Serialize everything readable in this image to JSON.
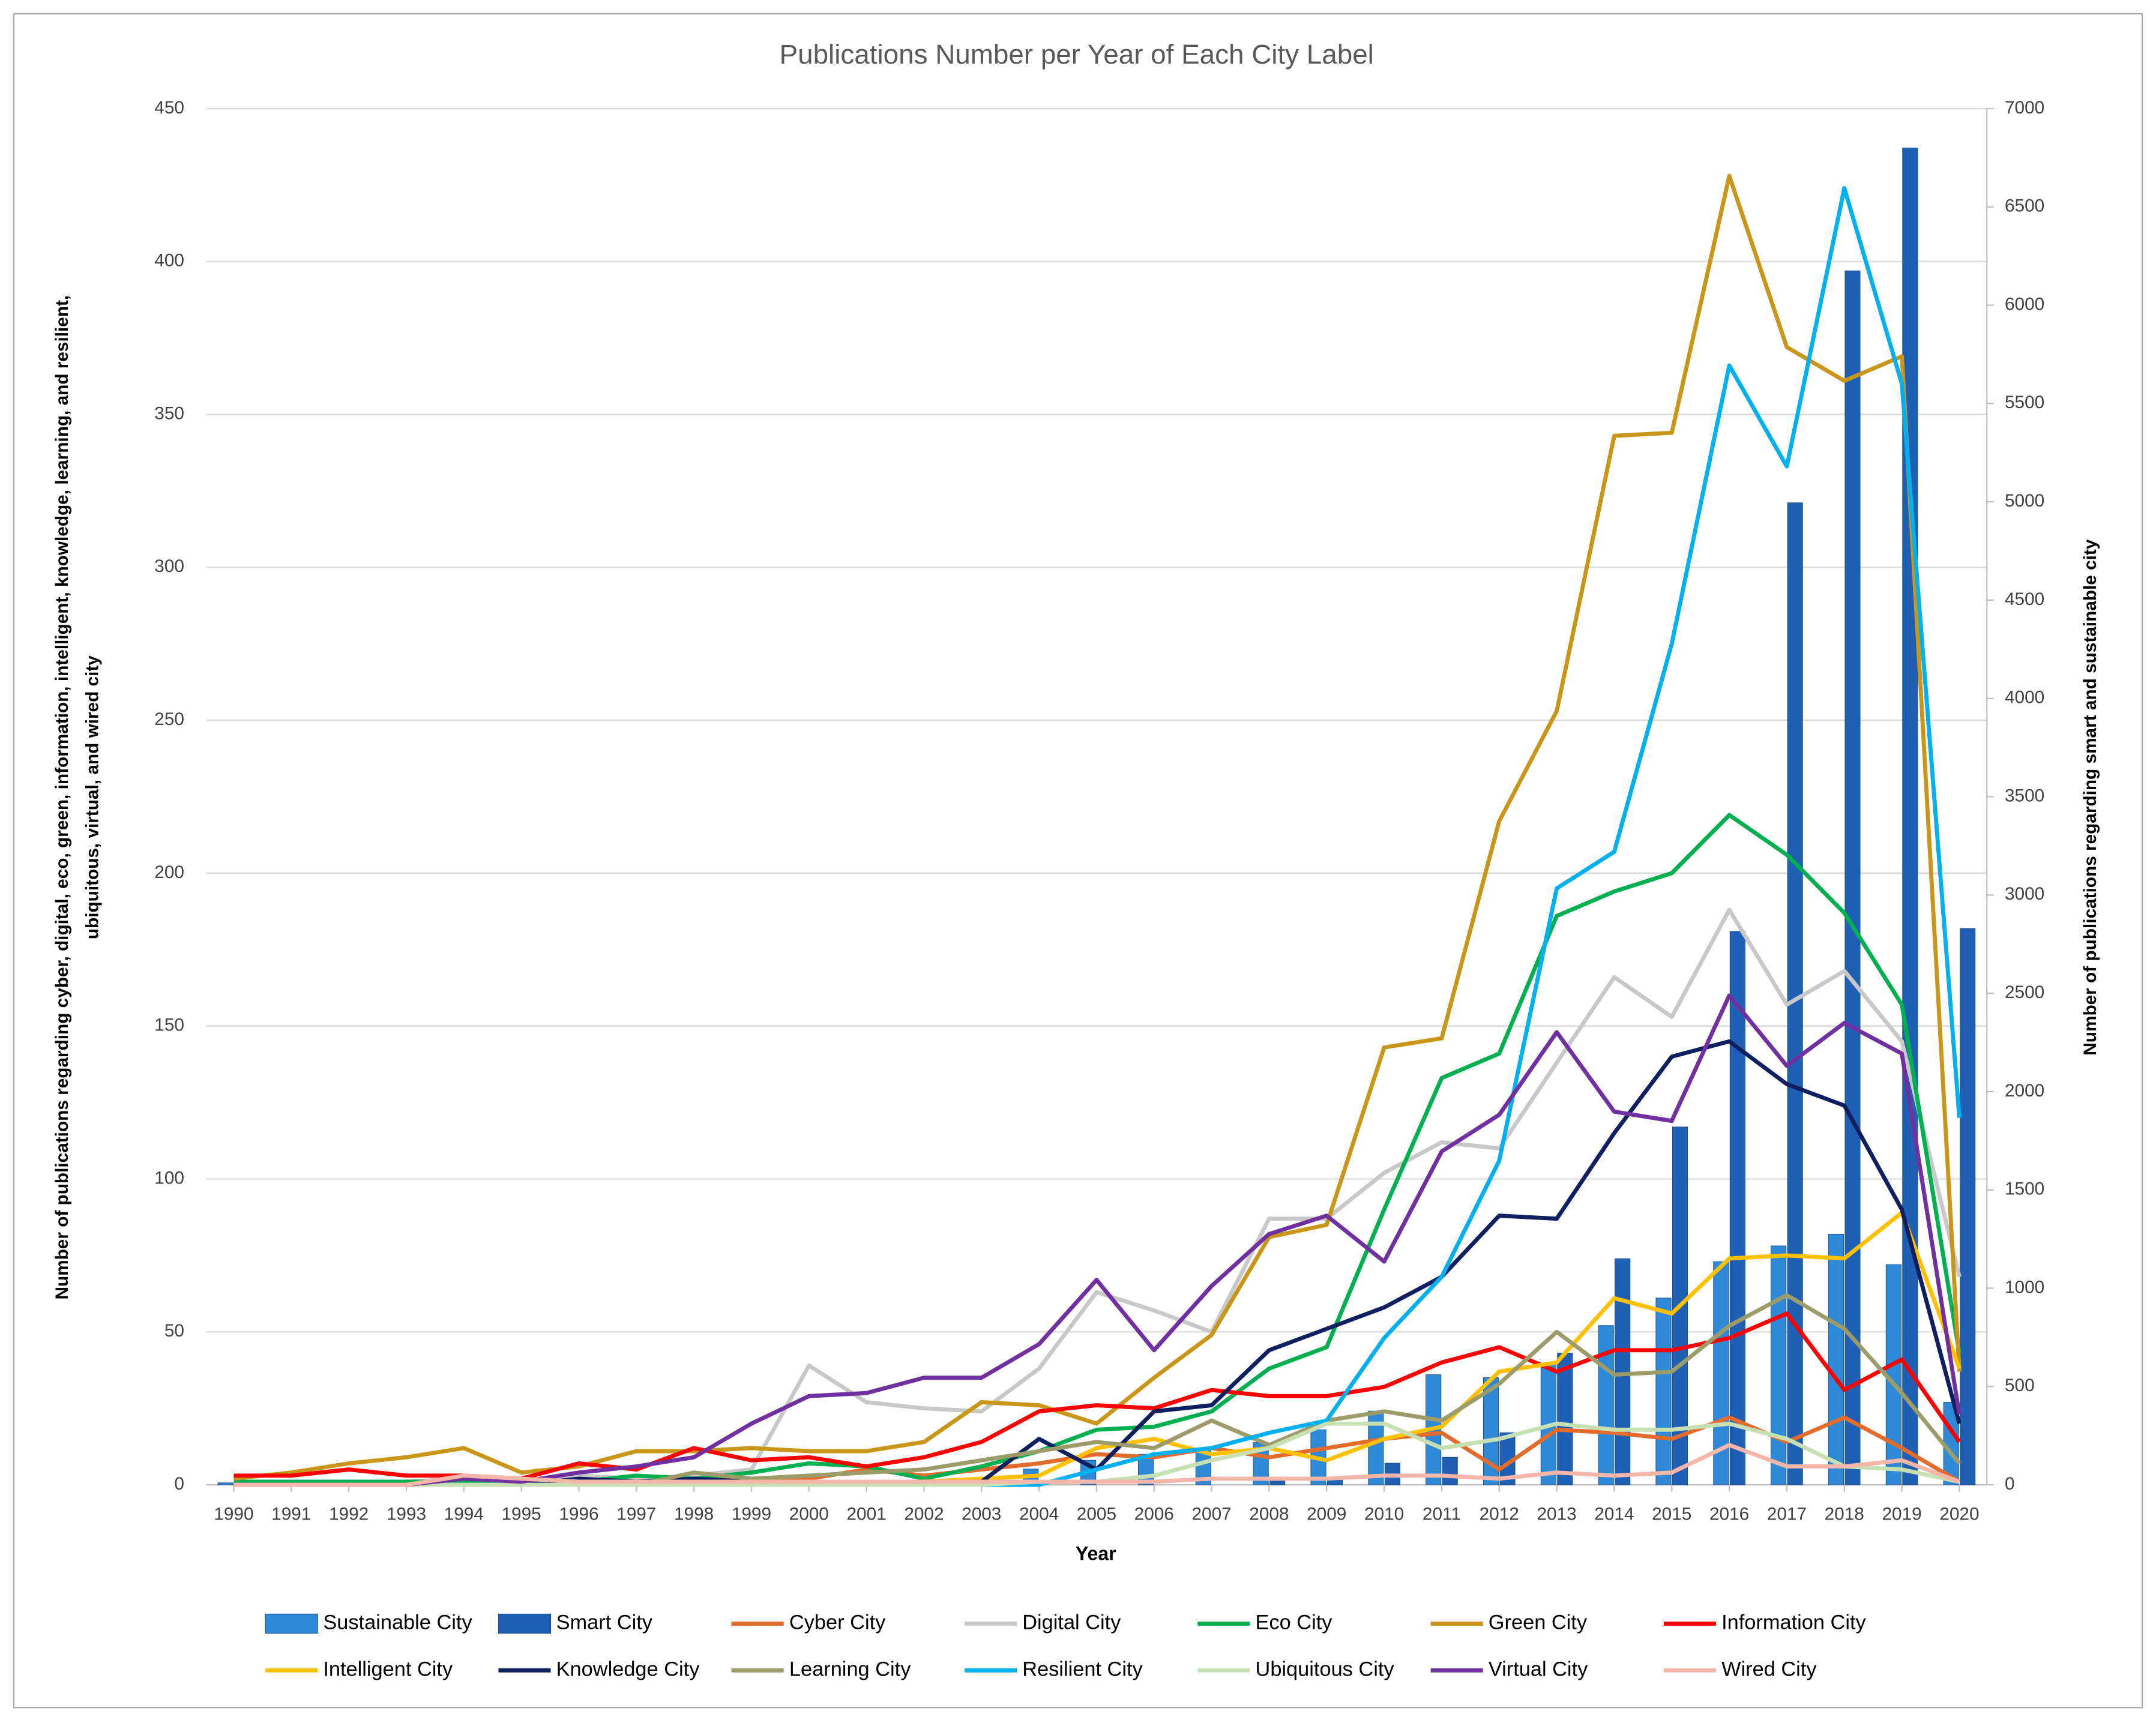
{
  "chart_data": {
    "type": "combo",
    "title": "Publications Number per Year of Each City Label",
    "x_label": "Year",
    "y_label": [
      "Number of publications  regarding cyber, digital, eco, green, information, intelligent, knowledge, learning, and resilient,",
      "ubiquitous,  virtual, and wired city"
    ],
    "y2_label": "Number of publications  regarding  smart and sustainable city",
    "x": [
      1990,
      1991,
      1992,
      1993,
      1994,
      1995,
      1996,
      1997,
      1998,
      1999,
      2000,
      2001,
      2002,
      2003,
      2004,
      2005,
      2006,
      2007,
      2008,
      2009,
      2010,
      2011,
      2012,
      2013,
      2014,
      2015,
      2016,
      2017,
      2018,
      2019,
      2020
    ],
    "ylim": [
      0,
      450
    ],
    "yticks": [
      0,
      50,
      100,
      150,
      200,
      250,
      300,
      350,
      400,
      450
    ],
    "y2lim": [
      0,
      7000
    ],
    "y2ticks": [
      0,
      500,
      1000,
      1500,
      2000,
      2500,
      3000,
      3500,
      4000,
      4500,
      5000,
      5500,
      6000,
      6500,
      7000
    ],
    "grid": true,
    "legend": "bottom",
    "series": [
      {
        "name": "Sustainable City",
        "type": "bar",
        "axis": "y2",
        "color": "#2e8ad6",
        "values": [
          10,
          10,
          10,
          10,
          10,
          10,
          10,
          10,
          10,
          10,
          10,
          10,
          15,
          30,
          80,
          125,
          155,
          185,
          215,
          280,
          375,
          560,
          545,
          620,
          810,
          950,
          1135,
          1215,
          1275,
          1120,
          420
        ]
      },
      {
        "name": "Smart City",
        "type": "bar",
        "axis": "y2",
        "color": "#1f5fb4",
        "values": [
          0,
          0,
          0,
          0,
          0,
          0,
          0,
          0,
          0,
          0,
          0,
          0,
          0,
          0,
          0,
          0,
          0,
          0,
          30,
          30,
          110,
          140,
          265,
          670,
          1150,
          1820,
          2815,
          4995,
          6175,
          6800,
          2830
        ]
      },
      {
        "name": "Cyber City",
        "type": "line",
        "color": "#e36c2c",
        "values": [
          1,
          1,
          1,
          1,
          2,
          1,
          2,
          2,
          2,
          2,
          2,
          5,
          3,
          5,
          7,
          10,
          9,
          12,
          9,
          12,
          15,
          17,
          5,
          18,
          17,
          15,
          22,
          14,
          22,
          12,
          1
        ]
      },
      {
        "name": "Digital City",
        "type": "line",
        "color": "#c8c8c8",
        "values": [
          0,
          0,
          1,
          1,
          2,
          1,
          3,
          2,
          3,
          5,
          39,
          27,
          25,
          24,
          38,
          63,
          57,
          50,
          87,
          87,
          102,
          112,
          110,
          138,
          166,
          153,
          188,
          157,
          168,
          145,
          68
        ]
      },
      {
        "name": "Eco City",
        "type": "line",
        "color": "#00b050",
        "values": [
          1,
          1,
          1,
          1,
          1,
          1,
          1,
          3,
          2,
          4,
          7,
          6,
          2,
          6,
          11,
          18,
          19,
          24,
          38,
          45,
          90,
          133,
          141,
          186,
          194,
          200,
          219,
          206,
          187,
          157,
          43
        ]
      },
      {
        "name": "Green City",
        "type": "line",
        "color": "#c9961a",
        "values": [
          2,
          4,
          7,
          9,
          12,
          4,
          6,
          11,
          11,
          12,
          11,
          11,
          14,
          27,
          26,
          20,
          35,
          49,
          81,
          85,
          143,
          146,
          217,
          253,
          343,
          344,
          428,
          372,
          361,
          369,
          37
        ]
      },
      {
        "name": "Information City",
        "type": "line",
        "color": "#ff0000",
        "values": [
          3,
          3,
          5,
          3,
          3,
          2,
          7,
          5,
          12,
          8,
          9,
          6,
          9,
          14,
          24,
          26,
          25,
          31,
          29,
          29,
          32,
          40,
          45,
          37,
          44,
          44,
          48,
          56,
          31,
          41,
          14
        ]
      },
      {
        "name": "Intelligent City",
        "type": "line",
        "color": "#ffc000",
        "values": [
          0,
          0,
          0,
          0,
          0,
          0,
          0,
          0,
          0,
          0,
          0,
          0,
          1,
          2,
          3,
          12,
          15,
          10,
          12,
          8,
          15,
          19,
          37,
          40,
          61,
          56,
          74,
          75,
          74,
          89,
          38
        ]
      },
      {
        "name": "Knowledge City",
        "type": "line",
        "color": "#0f1f5f",
        "values": [
          0,
          0,
          0,
          0,
          0,
          0,
          2,
          1,
          2,
          1,
          1,
          1,
          1,
          1,
          15,
          5,
          24,
          26,
          44,
          51,
          58,
          68,
          88,
          87,
          115,
          140,
          145,
          131,
          124,
          90,
          20
        ]
      },
      {
        "name": "Learning City",
        "type": "line",
        "color": "#9c9c6a",
        "values": [
          0,
          0,
          0,
          0,
          0,
          0,
          0,
          0,
          4,
          2,
          3,
          4,
          5,
          8,
          11,
          14,
          12,
          21,
          13,
          21,
          24,
          21,
          33,
          50,
          36,
          37,
          52,
          62,
          51,
          30,
          7
        ]
      },
      {
        "name": "Resilient City",
        "type": "line",
        "color": "#00b0f0",
        "values": [
          0,
          0,
          0,
          0,
          0,
          0,
          0,
          0,
          0,
          0,
          0,
          0,
          0,
          0,
          0,
          5,
          10,
          12,
          17,
          21,
          48,
          68,
          106,
          195,
          207,
          275,
          366,
          333,
          424,
          360,
          120
        ]
      },
      {
        "name": "Ubiquitous City",
        "type": "line",
        "color": "#c6e0b4",
        "values": [
          0,
          0,
          0,
          0,
          0,
          0,
          0,
          0,
          0,
          0,
          0,
          0,
          0,
          0,
          1,
          1,
          3,
          8,
          12,
          20,
          20,
          12,
          15,
          20,
          18,
          18,
          20,
          15,
          6,
          5,
          1
        ]
      },
      {
        "name": "Virtual City",
        "type": "line",
        "color": "#7030a0",
        "values": [
          0,
          0,
          0,
          0,
          2,
          1,
          4,
          6,
          9,
          20,
          29,
          30,
          35,
          35,
          46,
          67,
          44,
          65,
          82,
          88,
          73,
          109,
          121,
          148,
          122,
          119,
          160,
          137,
          151,
          141,
          23
        ]
      },
      {
        "name": "Wired City",
        "type": "line",
        "color": "#f4b6a8",
        "values": [
          0,
          0,
          0,
          0,
          3,
          2,
          1,
          1,
          1,
          1,
          1,
          1,
          1,
          1,
          1,
          1,
          1,
          2,
          2,
          2,
          3,
          3,
          2,
          4,
          3,
          4,
          13,
          6,
          6,
          8,
          1
        ]
      }
    ]
  }
}
